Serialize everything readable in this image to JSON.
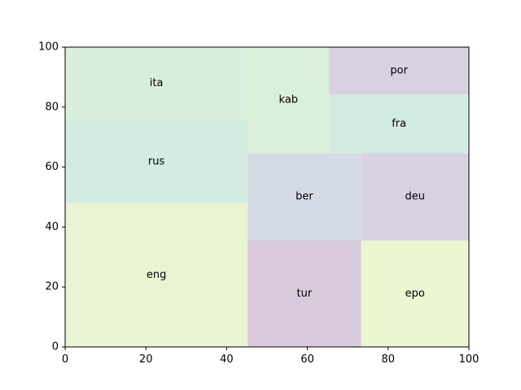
{
  "chart_data": {
    "type": "treemap",
    "xlim": [
      0,
      100
    ],
    "ylim": [
      0,
      100
    ],
    "x_ticks": [
      0,
      20,
      40,
      60,
      80,
      100
    ],
    "y_ticks": [
      0,
      20,
      40,
      60,
      80,
      100
    ],
    "grid": false,
    "cells": [
      {
        "label": "eng",
        "x": 0,
        "y": 0,
        "w": 45.2,
        "h": 47.9,
        "color": "#e9f5d2"
      },
      {
        "label": "rus",
        "x": 0,
        "y": 47.9,
        "w": 45.2,
        "h": 27.9,
        "color": "#d3ece3"
      },
      {
        "label": "ita",
        "x": 0,
        "y": 75.8,
        "w": 45.2,
        "h": 24.2,
        "color": "#d9efde"
      },
      {
        "label": "tur",
        "x": 45.2,
        "y": 0,
        "w": 28.1,
        "h": 35.5,
        "color": "#d9cadc"
      },
      {
        "label": "ber",
        "x": 45.2,
        "y": 35.5,
        "w": 28.1,
        "h": 29.2,
        "color": "#d5dbe6"
      },
      {
        "label": "kab",
        "x": 45.2,
        "y": 64.7,
        "w": 20.2,
        "h": 35.3,
        "color": "#dbf0d8"
      },
      {
        "label": "epo",
        "x": 73.3,
        "y": 0,
        "w": 26.7,
        "h": 35.5,
        "color": "#ebf6d2"
      },
      {
        "label": "deu",
        "x": 73.3,
        "y": 35.5,
        "w": 26.7,
        "h": 29.2,
        "color": "#d9d2e3"
      },
      {
        "label": "fra",
        "x": 65.4,
        "y": 64.7,
        "w": 34.6,
        "h": 19.5,
        "color": "#d3ece3"
      },
      {
        "label": "por",
        "x": 65.4,
        "y": 84.2,
        "w": 34.6,
        "h": 15.8,
        "color": "#d9d0e2"
      }
    ]
  }
}
